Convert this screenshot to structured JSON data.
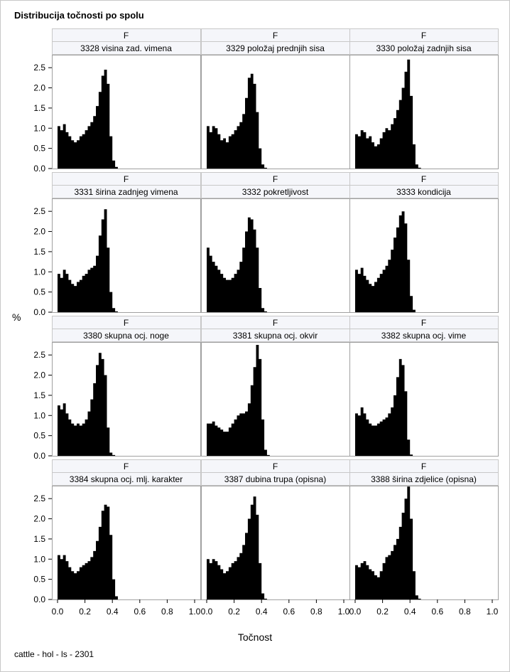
{
  "chart_data": {
    "type": "area",
    "title": "Distribucija točnosti po spolu",
    "xlabel": "Točnost",
    "ylabel": "%",
    "footnote": "cattle - hol - ls - 2301",
    "xlim": [
      0,
      1
    ],
    "ylim": [
      0,
      2.5
    ],
    "xticks": [
      0.0,
      0.2,
      0.4,
      0.6,
      0.8,
      1.0
    ],
    "xtick_labels": [
      "0.0",
      "0.2",
      "0.4",
      "0.6",
      "0.8",
      "1.0"
    ],
    "yticks": [
      0.0,
      0.5,
      1.0,
      1.5,
      2.0,
      2.5
    ],
    "ytick_labels": [
      "0.0",
      "0.5",
      "1.0",
      "1.5",
      "2.0",
      "2.5"
    ],
    "colors": {
      "fill": "#000000",
      "header_bg": "#f5f6fa",
      "border": "#a0a0a0"
    },
    "panels": [
      {
        "sex": "F",
        "label": "3328 visina zad. vimena",
        "x": [
          0.0,
          0.02,
          0.04,
          0.06,
          0.08,
          0.1,
          0.12,
          0.14,
          0.16,
          0.18,
          0.2,
          0.22,
          0.24,
          0.26,
          0.28,
          0.3,
          0.32,
          0.34,
          0.36,
          0.38,
          0.4,
          0.42,
          0.44,
          0.46,
          0.48,
          0.5
        ],
        "y": [
          1.05,
          0.95,
          1.1,
          0.9,
          0.8,
          0.7,
          0.65,
          0.7,
          0.8,
          0.85,
          0.95,
          1.05,
          1.15,
          1.3,
          1.55,
          1.9,
          2.3,
          2.45,
          2.1,
          0.8,
          0.2,
          0.04,
          0,
          0,
          0,
          0
        ]
      },
      {
        "sex": "F",
        "label": "3329 položaj prednjih sisa",
        "x": [
          0.0,
          0.02,
          0.04,
          0.06,
          0.08,
          0.1,
          0.12,
          0.14,
          0.16,
          0.18,
          0.2,
          0.22,
          0.24,
          0.26,
          0.28,
          0.3,
          0.32,
          0.34,
          0.36,
          0.38,
          0.4,
          0.42,
          0.44,
          0.46,
          0.48,
          0.5
        ],
        "y": [
          1.05,
          0.9,
          1.05,
          1.0,
          0.85,
          0.7,
          0.75,
          0.65,
          0.8,
          0.85,
          0.95,
          1.05,
          1.15,
          1.35,
          1.75,
          2.25,
          2.35,
          2.1,
          1.4,
          0.5,
          0.1,
          0.02,
          0,
          0,
          0,
          0
        ]
      },
      {
        "sex": "F",
        "label": "3330 položaj zadnjih sisa",
        "x": [
          0.0,
          0.02,
          0.04,
          0.06,
          0.08,
          0.1,
          0.12,
          0.14,
          0.16,
          0.18,
          0.2,
          0.22,
          0.24,
          0.26,
          0.28,
          0.3,
          0.32,
          0.34,
          0.36,
          0.38,
          0.4,
          0.42,
          0.44,
          0.46,
          0.48,
          0.5
        ],
        "y": [
          0.85,
          0.8,
          0.95,
          0.9,
          0.75,
          0.8,
          0.65,
          0.55,
          0.6,
          0.75,
          0.9,
          1.0,
          0.95,
          1.1,
          1.25,
          1.45,
          1.7,
          2.0,
          2.4,
          2.7,
          1.8,
          0.6,
          0.1,
          0.02,
          0,
          0
        ]
      },
      {
        "sex": "F",
        "label": "3331 širina zadnjeg vimena",
        "x": [
          0.0,
          0.02,
          0.04,
          0.06,
          0.08,
          0.1,
          0.12,
          0.14,
          0.16,
          0.18,
          0.2,
          0.22,
          0.24,
          0.26,
          0.28,
          0.3,
          0.32,
          0.34,
          0.36,
          0.38,
          0.4,
          0.42,
          0.44,
          0.46,
          0.48,
          0.5
        ],
        "y": [
          0.95,
          0.85,
          1.05,
          0.95,
          0.8,
          0.7,
          0.65,
          0.75,
          0.8,
          0.9,
          0.95,
          1.05,
          1.1,
          1.15,
          1.4,
          1.9,
          2.3,
          2.55,
          1.6,
          0.5,
          0.1,
          0.02,
          0,
          0,
          0,
          0
        ]
      },
      {
        "sex": "F",
        "label": "3332 pokretljivost",
        "x": [
          0.0,
          0.02,
          0.04,
          0.06,
          0.08,
          0.1,
          0.12,
          0.14,
          0.16,
          0.18,
          0.2,
          0.22,
          0.24,
          0.26,
          0.28,
          0.3,
          0.32,
          0.34,
          0.36,
          0.38,
          0.4,
          0.42,
          0.44,
          0.46,
          0.48,
          0.5
        ],
        "y": [
          1.6,
          1.4,
          1.25,
          1.15,
          1.05,
          0.95,
          0.85,
          0.8,
          0.8,
          0.85,
          0.95,
          1.05,
          1.25,
          1.6,
          2.0,
          2.35,
          2.3,
          2.05,
          1.6,
          0.6,
          0.1,
          0.02,
          0,
          0,
          0,
          0
        ]
      },
      {
        "sex": "F",
        "label": "3333 kondicija",
        "x": [
          0.0,
          0.02,
          0.04,
          0.06,
          0.08,
          0.1,
          0.12,
          0.14,
          0.16,
          0.18,
          0.2,
          0.22,
          0.24,
          0.26,
          0.28,
          0.3,
          0.32,
          0.34,
          0.36,
          0.38,
          0.4,
          0.42,
          0.44,
          0.46,
          0.48,
          0.5
        ],
        "y": [
          1.05,
          0.95,
          1.1,
          0.9,
          0.8,
          0.7,
          0.65,
          0.75,
          0.85,
          0.95,
          1.05,
          1.15,
          1.3,
          1.55,
          1.85,
          2.1,
          2.4,
          2.5,
          2.2,
          1.3,
          0.4,
          0.06,
          0,
          0,
          0,
          0
        ]
      },
      {
        "sex": "F",
        "label": "3380 skupna ocj. noge",
        "x": [
          0.0,
          0.02,
          0.04,
          0.06,
          0.08,
          0.1,
          0.12,
          0.14,
          0.16,
          0.18,
          0.2,
          0.22,
          0.24,
          0.26,
          0.28,
          0.3,
          0.32,
          0.34,
          0.36,
          0.38,
          0.4,
          0.42,
          0.44,
          0.46,
          0.48,
          0.5
        ],
        "y": [
          1.25,
          1.15,
          1.3,
          1.05,
          0.9,
          0.8,
          0.75,
          0.8,
          0.75,
          0.8,
          0.9,
          1.1,
          1.4,
          1.8,
          2.25,
          2.55,
          2.4,
          2.0,
          0.7,
          0.08,
          0.02,
          0,
          0,
          0,
          0,
          0
        ]
      },
      {
        "sex": "F",
        "label": "3381 skupna ocj. okvir",
        "x": [
          0.0,
          0.02,
          0.04,
          0.06,
          0.08,
          0.1,
          0.12,
          0.14,
          0.16,
          0.18,
          0.2,
          0.22,
          0.24,
          0.26,
          0.28,
          0.3,
          0.32,
          0.34,
          0.36,
          0.38,
          0.4,
          0.42,
          0.44,
          0.46,
          0.48,
          0.5
        ],
        "y": [
          0.8,
          0.8,
          0.85,
          0.75,
          0.7,
          0.65,
          0.6,
          0.6,
          0.7,
          0.8,
          0.9,
          1.0,
          1.05,
          1.05,
          1.1,
          1.3,
          1.75,
          2.2,
          2.75,
          2.4,
          0.9,
          0.15,
          0.02,
          0,
          0,
          0
        ]
      },
      {
        "sex": "F",
        "label": "3382 skupna ocj. vime",
        "x": [
          0.0,
          0.02,
          0.04,
          0.06,
          0.08,
          0.1,
          0.12,
          0.14,
          0.16,
          0.18,
          0.2,
          0.22,
          0.24,
          0.26,
          0.28,
          0.3,
          0.32,
          0.34,
          0.36,
          0.38,
          0.4,
          0.42,
          0.44,
          0.46,
          0.48,
          0.5
        ],
        "y": [
          1.05,
          1.0,
          1.2,
          1.05,
          0.9,
          0.8,
          0.75,
          0.75,
          0.8,
          0.85,
          0.9,
          0.95,
          1.05,
          1.2,
          1.5,
          1.95,
          2.4,
          2.25,
          1.6,
          0.4,
          0.03,
          0,
          0,
          0,
          0,
          0
        ]
      },
      {
        "sex": "F",
        "label": "3384 skupna ocj. mlj. karakter",
        "x": [
          0.0,
          0.02,
          0.04,
          0.06,
          0.08,
          0.1,
          0.12,
          0.14,
          0.16,
          0.18,
          0.2,
          0.22,
          0.24,
          0.26,
          0.28,
          0.3,
          0.32,
          0.34,
          0.36,
          0.38,
          0.4,
          0.42,
          0.44,
          0.46,
          0.48,
          0.5
        ],
        "y": [
          1.1,
          1.0,
          1.1,
          0.95,
          0.8,
          0.7,
          0.65,
          0.7,
          0.8,
          0.85,
          0.9,
          0.95,
          1.05,
          1.2,
          1.45,
          1.8,
          2.2,
          2.35,
          2.3,
          1.6,
          0.5,
          0.08,
          0,
          0,
          0,
          0
        ]
      },
      {
        "sex": "F",
        "label": "3387 dubina trupa (opisna)",
        "x": [
          0.0,
          0.02,
          0.04,
          0.06,
          0.08,
          0.1,
          0.12,
          0.14,
          0.16,
          0.18,
          0.2,
          0.22,
          0.24,
          0.26,
          0.28,
          0.3,
          0.32,
          0.34,
          0.36,
          0.38,
          0.4,
          0.42,
          0.44,
          0.46,
          0.48,
          0.5
        ],
        "y": [
          1.0,
          0.9,
          1.0,
          0.95,
          0.85,
          0.75,
          0.65,
          0.7,
          0.8,
          0.9,
          0.95,
          1.05,
          1.15,
          1.35,
          1.65,
          2.0,
          2.35,
          2.55,
          2.1,
          0.9,
          0.15,
          0.02,
          0,
          0,
          0,
          0
        ]
      },
      {
        "sex": "F",
        "label": "3388 širina zdjelice (opisna)",
        "x": [
          0.0,
          0.02,
          0.04,
          0.06,
          0.08,
          0.1,
          0.12,
          0.14,
          0.16,
          0.18,
          0.2,
          0.22,
          0.24,
          0.26,
          0.28,
          0.3,
          0.32,
          0.34,
          0.36,
          0.38,
          0.4,
          0.42,
          0.44,
          0.46,
          0.48,
          0.5
        ],
        "y": [
          0.85,
          0.8,
          0.9,
          0.95,
          0.85,
          0.75,
          0.7,
          0.6,
          0.55,
          0.7,
          0.9,
          1.05,
          1.1,
          1.2,
          1.35,
          1.5,
          1.8,
          2.15,
          2.5,
          2.8,
          2.0,
          0.7,
          0.1,
          0.02,
          0,
          0
        ]
      }
    ]
  }
}
